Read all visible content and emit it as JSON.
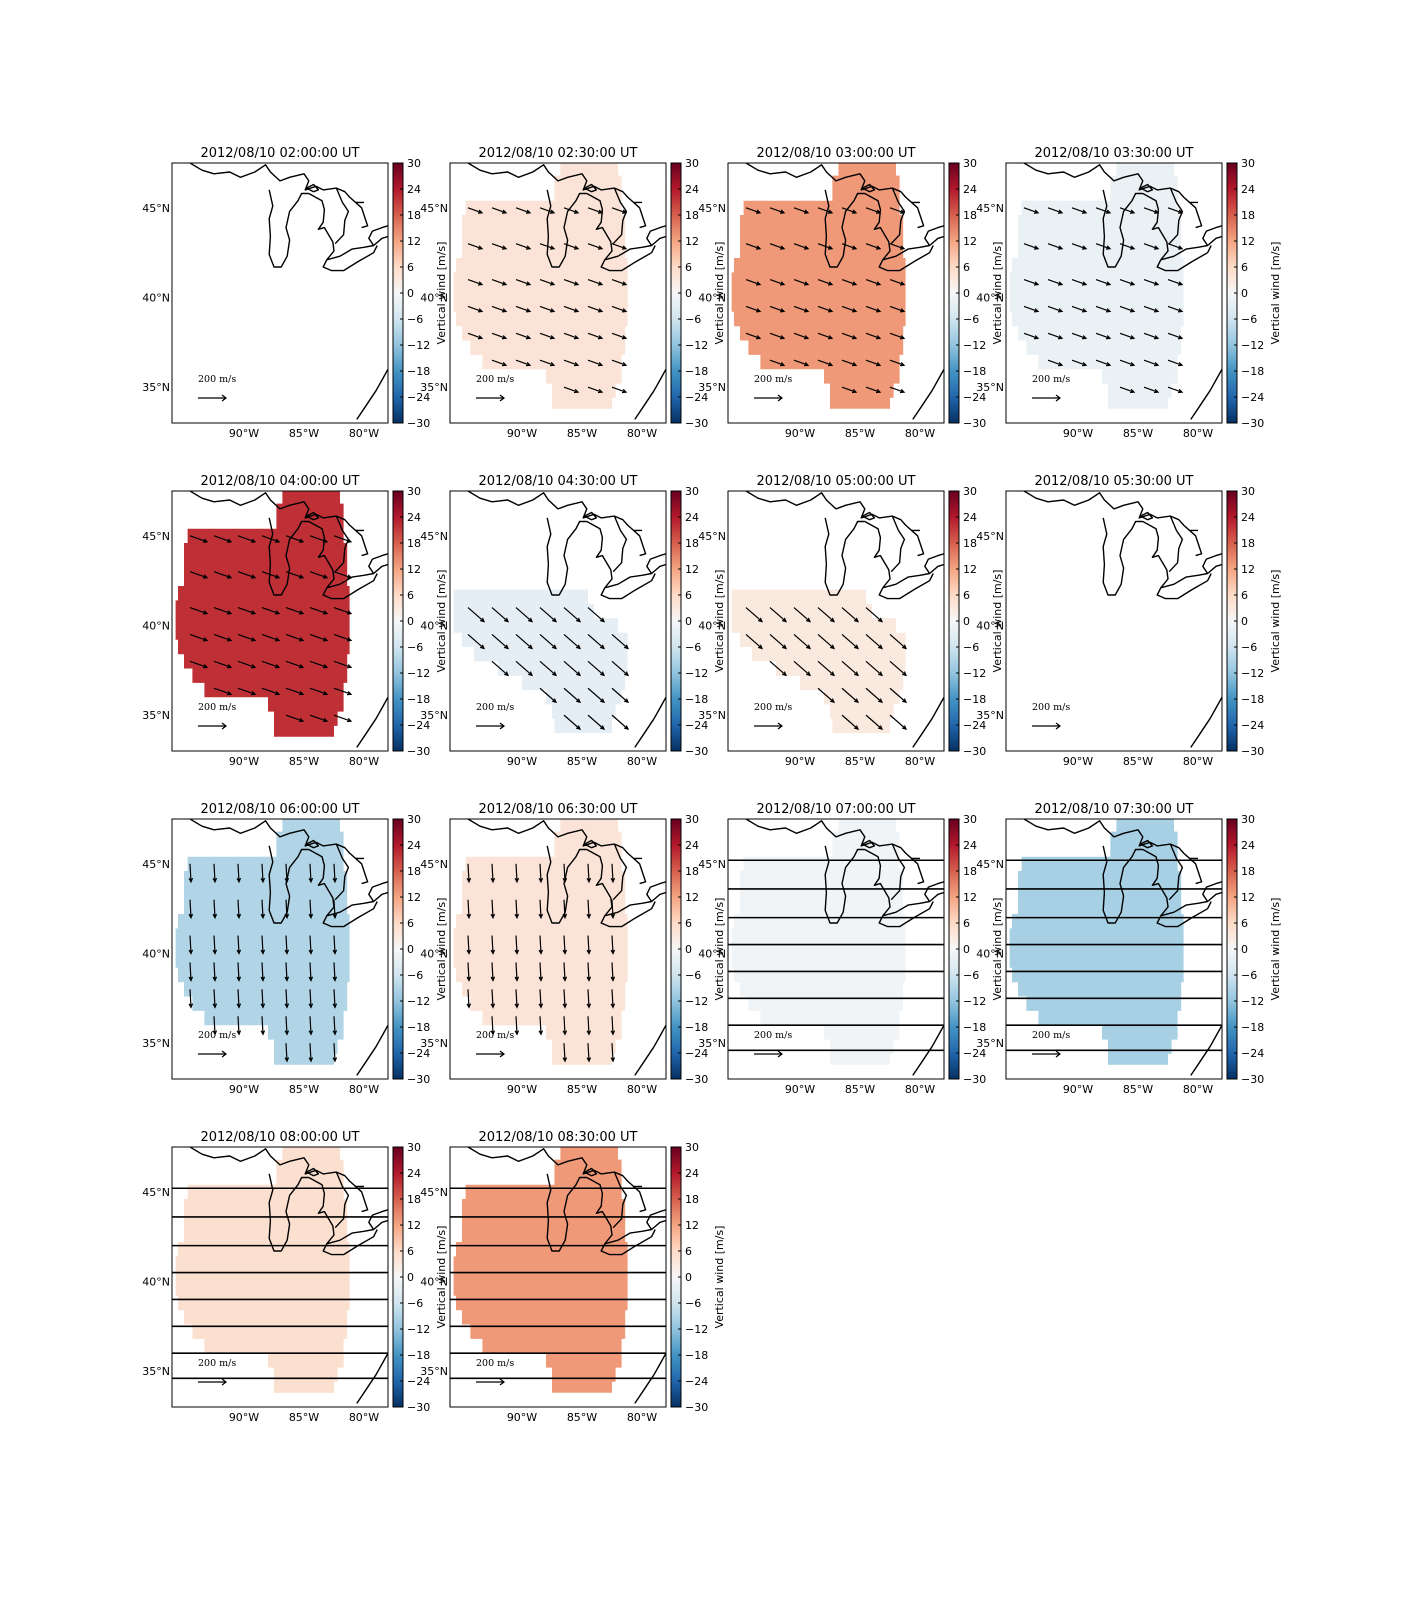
{
  "figure": {
    "panels": [
      {
        "title": "2012/08/10 02:00:00 UT",
        "value": null,
        "arrows": "none"
      },
      {
        "title": "2012/08/10 02:30:00 UT",
        "value": 4,
        "arrows": "southeast-small"
      },
      {
        "title": "2012/08/10 03:00:00 UT",
        "value": 13,
        "arrows": "southeast-small"
      },
      {
        "title": "2012/08/10 03:30:00 UT",
        "value": -2,
        "arrows": "southeast-small"
      },
      {
        "title": "2012/08/10 04:00:00 UT",
        "value": 22,
        "arrows": "southeast-medium"
      },
      {
        "title": "2012/08/10 04:30:00 UT",
        "value": -3,
        "arrows": "southeast-large"
      },
      {
        "title": "2012/08/10 05:00:00 UT",
        "value": 3,
        "arrows": "southeast-large"
      },
      {
        "title": "2012/08/10 05:30:00 UT",
        "value": null,
        "arrows": "none"
      },
      {
        "title": "2012/08/10 06:00:00 UT",
        "value": -9,
        "arrows": "south-large"
      },
      {
        "title": "2012/08/10 06:30:00 UT",
        "value": 4,
        "arrows": "south-large"
      },
      {
        "title": "2012/08/10 07:00:00 UT",
        "value": -1,
        "arrows": "east-huge"
      },
      {
        "title": "2012/08/10 07:30:00 UT",
        "value": -10,
        "arrows": "east-huge"
      },
      {
        "title": "2012/08/10 08:00:00 UT",
        "value": 5,
        "arrows": "east-huge"
      },
      {
        "title": "2012/08/10 08:30:00 UT",
        "value": 13,
        "arrows": "east-huge"
      }
    ],
    "x_ticks": [
      "90°W",
      "85°W",
      "80°W"
    ],
    "y_ticks": [
      "45°N",
      "40°N",
      "35°N"
    ],
    "colorbar": {
      "label": "Vertical wind [m/s]",
      "ticks": [
        "30",
        "24",
        "18",
        "12",
        "6",
        "0",
        "−6",
        "−12",
        "−18",
        "−24",
        "−30"
      ],
      "range": [
        -30,
        30
      ],
      "colormap": "RdBu_r"
    },
    "reference_arrow": {
      "value": "200",
      "unit_numerator": "m",
      "unit_denominator": "s"
    }
  }
}
